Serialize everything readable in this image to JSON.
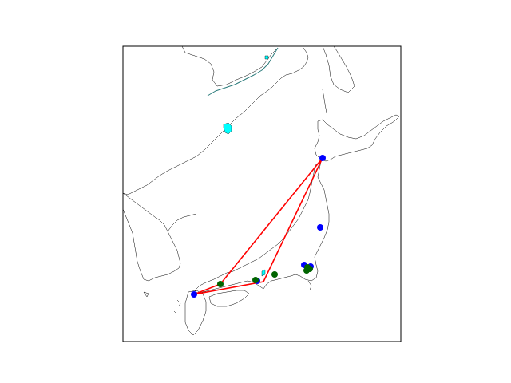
{
  "map": {
    "background_color": "#ffffff",
    "frame_color": "#000000",
    "coast_color": "#000000",
    "lake_fill_color": "#00ffff",
    "route_color": "#ff0000",
    "marker_colors": {
      "blue": "#0000ff",
      "green": "#006400"
    },
    "blue_markers": [
      {
        "id": "aomori-hakodate"
      },
      {
        "id": "sendai-area"
      },
      {
        "id": "tokyo-1"
      },
      {
        "id": "tokyo-2"
      },
      {
        "id": "osaka"
      },
      {
        "id": "kyushu-west"
      }
    ],
    "green_markers": [
      {
        "id": "okayama"
      },
      {
        "id": "kobe"
      },
      {
        "id": "nagoya"
      },
      {
        "id": "tokyo-green-1"
      },
      {
        "id": "tokyo-green-2"
      },
      {
        "id": "tokyo-green-3"
      }
    ]
  }
}
